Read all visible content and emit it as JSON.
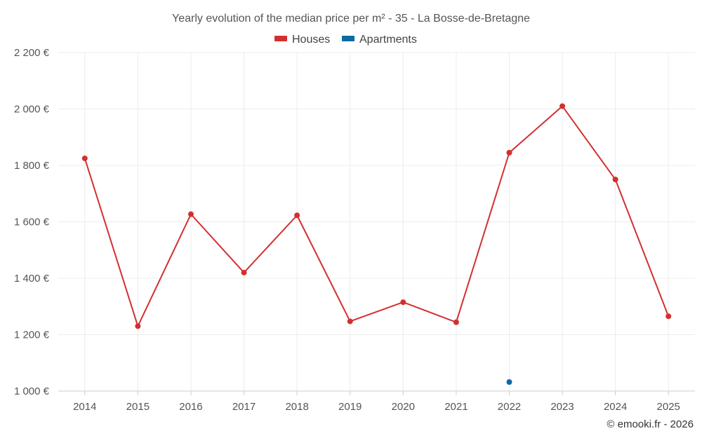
{
  "chart_data": {
    "type": "line",
    "title": "Yearly evolution of the median price per m² - 35 - La Bosse-de-Bretagne",
    "categories": [
      "2014",
      "2015",
      "2016",
      "2017",
      "2018",
      "2019",
      "2020",
      "2021",
      "2022",
      "2023",
      "2024",
      "2025"
    ],
    "y_ticks": [
      "1 000 €",
      "1 200 €",
      "1 400 €",
      "1 600 €",
      "1 800 €",
      "2 000 €",
      "2 200 €"
    ],
    "ylim": [
      1000,
      2200
    ],
    "grid": true,
    "legend_position": "top-center",
    "series": [
      {
        "name": "Houses",
        "color": "#d32f2f",
        "values": [
          1825,
          1230,
          1627,
          1420,
          1623,
          1247,
          1315,
          1244,
          1845,
          2010,
          1750,
          1265
        ]
      },
      {
        "name": "Apartments",
        "color": "#0d6aa3",
        "values": [
          null,
          null,
          null,
          null,
          null,
          null,
          null,
          null,
          1032,
          null,
          null,
          null
        ]
      }
    ],
    "credit": "© emooki.fr - 2026"
  }
}
